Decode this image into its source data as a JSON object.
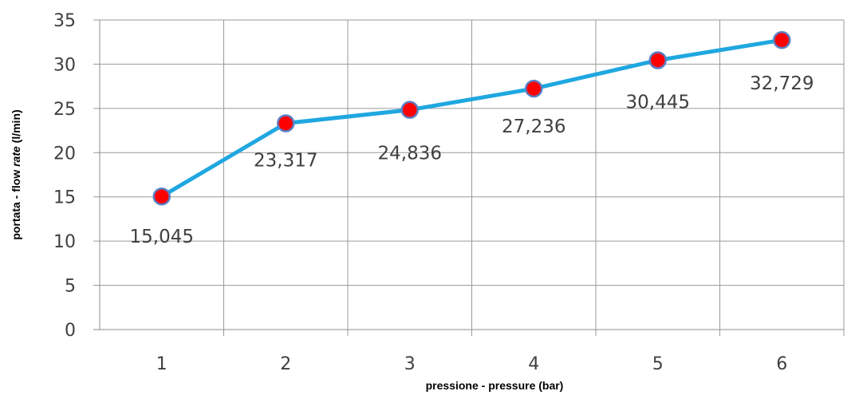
{
  "chart_data": {
    "type": "line",
    "x": [
      1,
      2,
      3,
      4,
      5,
      6
    ],
    "categories": [
      "1",
      "2",
      "3",
      "4",
      "5",
      "6"
    ],
    "series": [
      {
        "values": [
          15.045,
          23.317,
          24.836,
          27.236,
          30.445,
          32.729
        ],
        "labels": [
          "15,045",
          "23,317",
          "24,836",
          "27,236",
          "30,445",
          "32,729"
        ],
        "line_color": "#1fa7e0",
        "marker_color": "#ff0000",
        "marker_edge_color": "#5b7fc4"
      }
    ],
    "xlabel": "pressione - pressure  (bar)",
    "ylabel": {
      "prefix": "portata - flow ",
      "italic": "rate",
      "suffix": " (l/min)"
    },
    "ylim": [
      0,
      35
    ],
    "yticks": [
      "0",
      "5",
      "10",
      "15",
      "20",
      "25",
      "30",
      "35"
    ],
    "grid": true,
    "legend": "none"
  }
}
